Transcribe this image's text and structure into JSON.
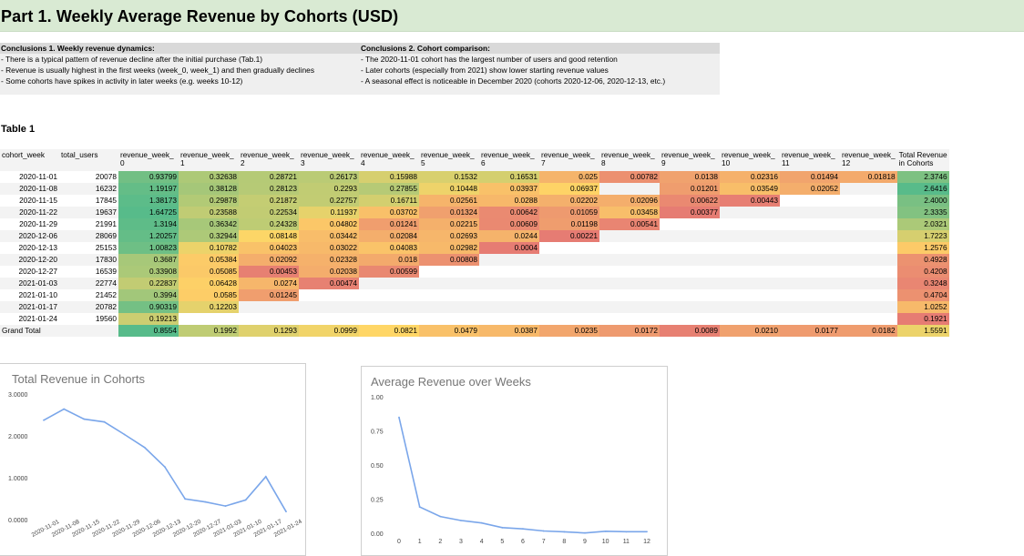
{
  "page_title": "Part 1. Weekly Average Revenue by Cohorts (USD)",
  "conclusions": [
    {
      "heading": "Conclusions 1. Weekly revenue dynamics:",
      "lines": [
        "- There is a typical pattern of revenue decline after the initial purchase (Tab.1)",
        "- Revenue is usually highest in the first weeks (week_0, week_1) and then gradually declines",
        "- Some cohorts have spikes in activity in later weeks (e.g. weeks 10-12)"
      ]
    },
    {
      "heading": "Conclusions 2. Cohort comparison:",
      "lines": [
        "- The 2020-11-01 cohort has the largest number of users and good retention",
        "- Later cohorts (especially from 2021) show lower starting revenue values",
        "- A seasonal effect is noticeable in December 2020 (cohorts 2020-12-06, 2020-12-13, etc.)"
      ]
    }
  ],
  "table_label": "Table 1",
  "table": {
    "headers": [
      [
        "cohort_week",
        ""
      ],
      [
        "total_users",
        ""
      ],
      [
        "revenue_week_",
        "0"
      ],
      [
        "revenue_week_",
        "1"
      ],
      [
        "revenue_week_",
        "2"
      ],
      [
        "revenue_week_",
        "3"
      ],
      [
        "revenue_week_",
        "4"
      ],
      [
        "revenue_week_",
        "5"
      ],
      [
        "revenue_week_",
        "6"
      ],
      [
        "revenue_week_",
        "7"
      ],
      [
        "revenue_week_",
        "8"
      ],
      [
        "revenue_week_",
        "9"
      ],
      [
        "revenue_week_",
        "10"
      ],
      [
        "revenue_week_",
        "11"
      ],
      [
        "revenue_week_",
        "12"
      ],
      [
        "Total Revenue",
        "in Cohorts"
      ]
    ],
    "rows": [
      {
        "cohort": "2020-11-01",
        "users": "20078",
        "weeks": [
          "0.93799",
          "0.32638",
          "0.28721",
          "0.26173",
          "0.15988",
          "0.1532",
          "0.16531",
          "0.025",
          "0.00782",
          "0.0138",
          "0.02316",
          "0.01494",
          "0.01818"
        ],
        "total": "2.3746"
      },
      {
        "cohort": "2020-11-08",
        "users": "16232",
        "weeks": [
          "1.19197",
          "0.38128",
          "0.28123",
          "0.2293",
          "0.27855",
          "0.10448",
          "0.03937",
          "0.06937",
          "",
          "0.01201",
          "0.03549",
          "0.02052",
          ""
        ],
        "total": "2.6416"
      },
      {
        "cohort": "2020-11-15",
        "users": "17845",
        "weeks": [
          "1.38173",
          "0.29878",
          "0.21872",
          "0.22757",
          "0.16711",
          "0.02561",
          "0.0288",
          "0.02202",
          "0.02096",
          "0.00622",
          "0.00443",
          "",
          ""
        ],
        "total": "2.4000"
      },
      {
        "cohort": "2020-11-22",
        "users": "19637",
        "weeks": [
          "1.64725",
          "0.23588",
          "0.22534",
          "0.11937",
          "0.03702",
          "0.01324",
          "0.00642",
          "0.01059",
          "0.03458",
          "0.00377",
          "",
          "",
          ""
        ],
        "total": "2.3335"
      },
      {
        "cohort": "2020-11-29",
        "users": "21991",
        "weeks": [
          "1.3194",
          "0.36342",
          "0.24328",
          "0.04802",
          "0.01241",
          "0.02215",
          "0.00609",
          "0.01198",
          "0.00541",
          "",
          "",
          "",
          ""
        ],
        "total": "2.0321"
      },
      {
        "cohort": "2020-12-06",
        "users": "28069",
        "weeks": [
          "1.20257",
          "0.32944",
          "0.08148",
          "0.03442",
          "0.02084",
          "0.02693",
          "0.0244",
          "0.00221",
          "",
          "",
          "",
          "",
          ""
        ],
        "total": "1.7223"
      },
      {
        "cohort": "2020-12-13",
        "users": "25153",
        "weeks": [
          "1.00823",
          "0.10782",
          "0.04023",
          "0.03022",
          "0.04083",
          "0.02982",
          "0.0004",
          "",
          "",
          "",
          "",
          "",
          ""
        ],
        "total": "1.2576"
      },
      {
        "cohort": "2020-12-20",
        "users": "17830",
        "weeks": [
          "0.3687",
          "0.05384",
          "0.02092",
          "0.02328",
          "0.018",
          "0.00808",
          "",
          "",
          "",
          "",
          "",
          "",
          ""
        ],
        "total": "0.4928"
      },
      {
        "cohort": "2020-12-27",
        "users": "16539",
        "weeks": [
          "0.33908",
          "0.05085",
          "0.00453",
          "0.02038",
          "0.00599",
          "",
          "",
          "",
          "",
          "",
          "",
          "",
          ""
        ],
        "total": "0.4208"
      },
      {
        "cohort": "2021-01-03",
        "users": "22774",
        "weeks": [
          "0.22837",
          "0.06428",
          "0.0274",
          "0.00474",
          "",
          "",
          "",
          "",
          "",
          "",
          "",
          "",
          ""
        ],
        "total": "0.3248"
      },
      {
        "cohort": "2021-01-10",
        "users": "21452",
        "weeks": [
          "0.3994",
          "0.0585",
          "0.01245",
          "",
          "",
          "",
          "",
          "",
          "",
          "",
          "",
          "",
          ""
        ],
        "total": "0.4704"
      },
      {
        "cohort": "2021-01-17",
        "users": "20782",
        "weeks": [
          "0.90319",
          "0.12203",
          "",
          "",
          "",
          "",
          "",
          "",
          "",
          "",
          "",
          "",
          ""
        ],
        "total": "1.0252"
      },
      {
        "cohort": "2021-01-24",
        "users": "19560",
        "weeks": [
          "0.19213",
          "",
          "",
          "",
          "",
          "",
          "",
          "",
          "",
          "",
          "",
          "",
          ""
        ],
        "total": "0.1921"
      }
    ],
    "grand_total": {
      "label": "Grand Total",
      "weeks": [
        "0.8554",
        "0.1992",
        "0.1293",
        "0.0999",
        "0.0821",
        "0.0479",
        "0.0387",
        "0.0235",
        "0.0172",
        "0.0089",
        "0.0210",
        "0.0177",
        "0.0182"
      ],
      "total": "1.5591"
    }
  },
  "chart_data": [
    {
      "type": "line",
      "title": "Total Revenue in Cohorts",
      "x": [
        "2020-11-01",
        "2020-11-08",
        "2020-11-15",
        "2020-11-22",
        "2020-11-29",
        "2020-12-06",
        "2020-12-13",
        "2020-12-20",
        "2020-12-27",
        "2021-01-03",
        "2021-01-10",
        "2021-01-17",
        "2021-01-24"
      ],
      "values": [
        2.3746,
        2.6416,
        2.4,
        2.3335,
        2.0321,
        1.7223,
        1.2576,
        0.4928,
        0.4208,
        0.3248,
        0.4704,
        1.0252,
        0.1921
      ],
      "ylim": [
        0,
        3
      ],
      "yticks": [
        "0.0000",
        "1.0000",
        "2.0000",
        "3.0000"
      ],
      "grid": false,
      "color": "#7aa6ea"
    },
    {
      "type": "line",
      "title": "Average Revenue over Weeks",
      "x": [
        "0",
        "1",
        "2",
        "3",
        "4",
        "5",
        "6",
        "7",
        "8",
        "9",
        "10",
        "11",
        "12"
      ],
      "values": [
        0.8554,
        0.1992,
        0.1293,
        0.0999,
        0.0821,
        0.0479,
        0.0387,
        0.0235,
        0.0172,
        0.0089,
        0.021,
        0.0177,
        0.0182
      ],
      "ylim": [
        0,
        1
      ],
      "yticks": [
        "0.00",
        "0.25",
        "0.50",
        "0.75",
        "1.00"
      ],
      "grid": false,
      "color": "#7aa6ea"
    }
  ]
}
